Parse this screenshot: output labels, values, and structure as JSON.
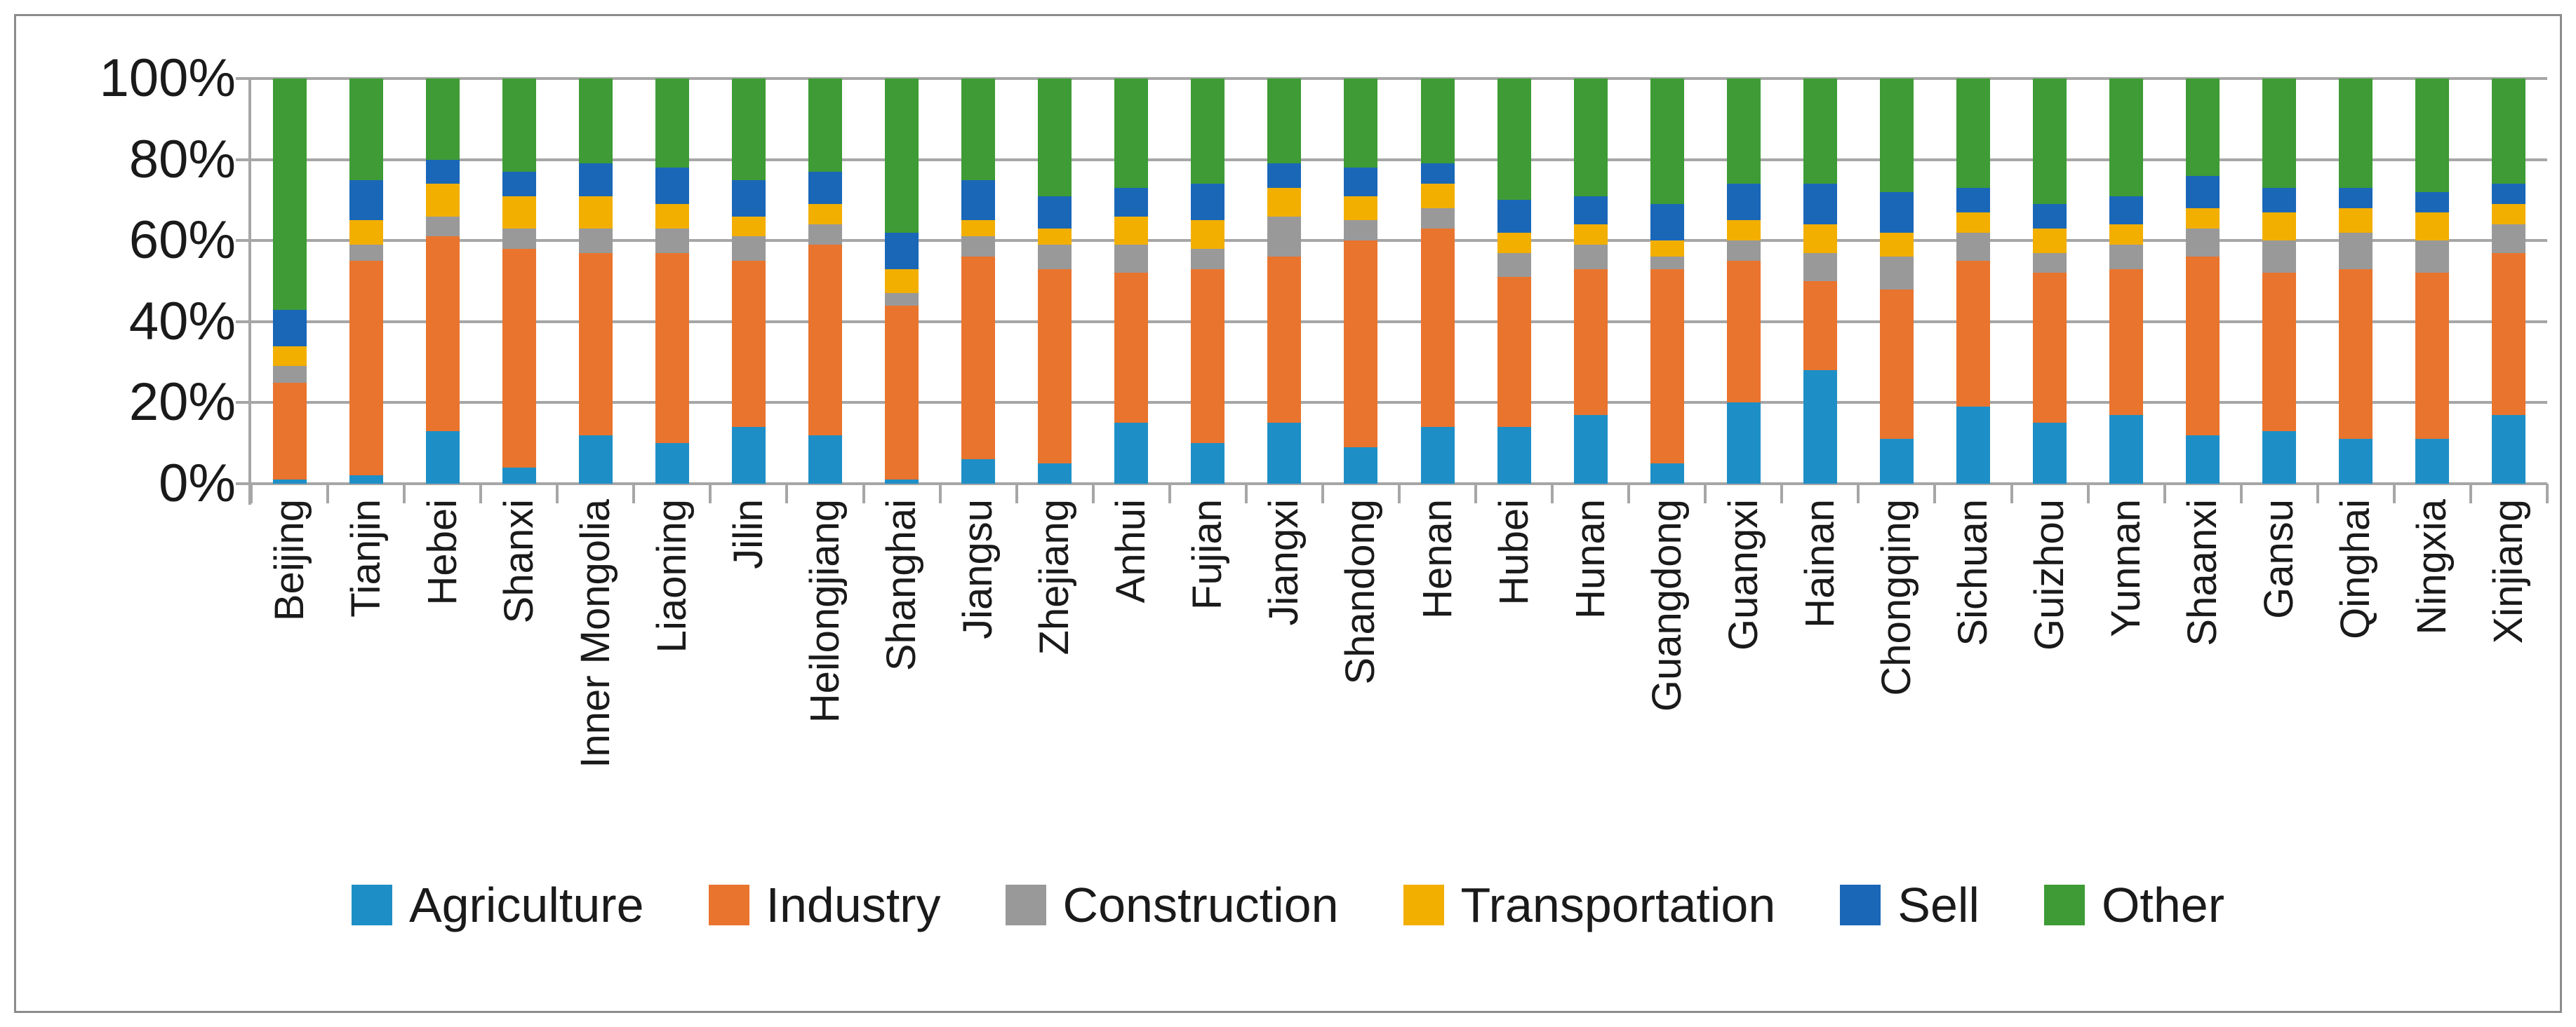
{
  "chart_data": {
    "type": "bar",
    "variant": "stacked-100-percent-column",
    "title": "",
    "xlabel": "",
    "ylabel": "",
    "categories": [
      "Beijing",
      "Tianjin",
      "Hebei",
      "Shanxi",
      "Inner Mongolia",
      "Liaoning",
      "Jilin",
      "Heilongjiang",
      "Shanghai",
      "Jiangsu",
      "Zhejiang",
      "Anhui",
      "Fujian",
      "Jiangxi",
      "Shandong",
      "Henan",
      "Hubei",
      "Hunan",
      "Guangdong",
      "Guangxi",
      "Hainan",
      "Chongqing",
      "Sichuan",
      "Guizhou",
      "Yunnan",
      "Shaanxi",
      "Gansu",
      "Qinghai",
      "Ningxia",
      "Xinjiang"
    ],
    "series": [
      {
        "name": "Agriculture",
        "color": "#1E8FC6",
        "values": [
          1,
          2,
          13,
          4,
          12,
          10,
          14,
          12,
          1,
          6,
          5,
          15,
          10,
          15,
          9,
          14,
          14,
          17,
          5,
          20,
          28,
          11,
          19,
          15,
          17,
          12,
          13,
          11,
          11,
          17
        ]
      },
      {
        "name": "Industry",
        "color": "#E9742E",
        "values": [
          24,
          53,
          48,
          54,
          45,
          47,
          41,
          47,
          43,
          50,
          48,
          37,
          43,
          41,
          51,
          49,
          37,
          36,
          48,
          35,
          22,
          37,
          36,
          37,
          36,
          44,
          39,
          42,
          41,
          40
        ]
      },
      {
        "name": "Construction",
        "color": "#999999",
        "values": [
          4,
          4,
          5,
          5,
          6,
          6,
          6,
          5,
          3,
          5,
          6,
          7,
          5,
          10,
          5,
          5,
          6,
          6,
          3,
          5,
          7,
          8,
          7,
          5,
          6,
          7,
          8,
          9,
          8,
          7
        ]
      },
      {
        "name": "Transportation",
        "color": "#F2AF00",
        "values": [
          5,
          6,
          8,
          8,
          8,
          6,
          5,
          5,
          6,
          4,
          4,
          7,
          7,
          7,
          6,
          6,
          5,
          5,
          4,
          5,
          7,
          6,
          5,
          6,
          5,
          5,
          7,
          6,
          7,
          5
        ]
      },
      {
        "name": "Sell",
        "color": "#1A67B8",
        "values": [
          9,
          10,
          6,
          6,
          8,
          9,
          9,
          8,
          9,
          10,
          8,
          7,
          9,
          6,
          7,
          5,
          8,
          7,
          9,
          9,
          10,
          10,
          6,
          6,
          7,
          8,
          6,
          5,
          5,
          5
        ]
      },
      {
        "name": "Other",
        "color": "#3E9B35",
        "values": [
          57,
          25,
          20,
          23,
          21,
          22,
          25,
          23,
          38,
          25,
          29,
          27,
          26,
          21,
          22,
          21,
          30,
          29,
          31,
          26,
          26,
          28,
          27,
          31,
          29,
          24,
          27,
          27,
          28,
          26
        ]
      }
    ],
    "y_axis": {
      "min": 0,
      "max": 100,
      "tick_labels": [
        "0%",
        "20%",
        "40%",
        "60%",
        "80%",
        "100%"
      ],
      "grid": true
    },
    "legend": {
      "position": "bottom",
      "labels": [
        "Agriculture",
        "Industry",
        "Construction",
        "Transportation",
        "Sell",
        "Other"
      ]
    }
  },
  "style_colors": {
    "gridline": "#A6A6A6",
    "axis": "#A6A6A6",
    "frame_border": "#8C8C8C",
    "text": "#1A1A1A",
    "background": "#FFFFFF"
  }
}
